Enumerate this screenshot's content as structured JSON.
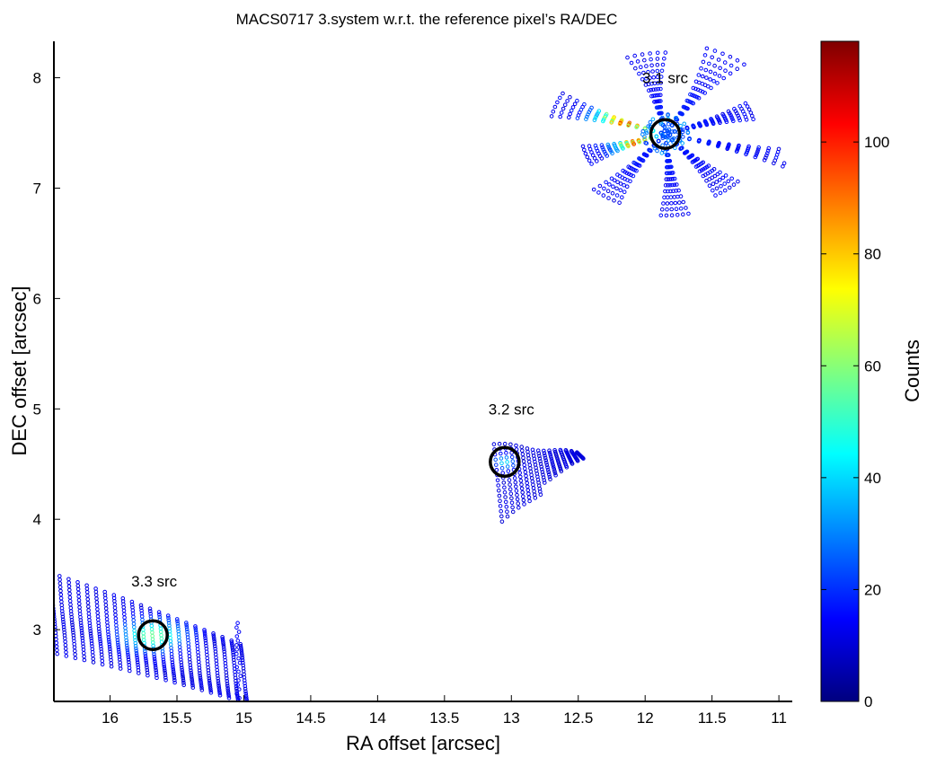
{
  "chart_data": {
    "type": "scatter",
    "title": "MACS0717  3.system w.r.t. the reference pixel’s RA/DEC",
    "xlabel": "RA offset [arcsec]",
    "ylabel": "DEC offset [arcsec]",
    "xlim": [
      16.42,
      10.9
    ],
    "ylim": [
      2.35,
      8.33
    ],
    "x_reversed": true,
    "x_ticks": [
      "16",
      "15.5",
      "15",
      "14.5",
      "14",
      "13.5",
      "13",
      "12.5",
      "12",
      "11.5",
      "11"
    ],
    "x_tick_values": [
      16,
      15.5,
      15,
      14.5,
      14,
      13.5,
      13,
      12.5,
      12,
      11.5,
      11
    ],
    "y_ticks": [
      "3",
      "4",
      "5",
      "6",
      "7",
      "8"
    ],
    "y_tick_values": [
      3,
      4,
      5,
      6,
      7,
      8
    ],
    "colorbar": {
      "label": "Counts",
      "range": [
        0,
        118
      ],
      "ticks": [
        "0",
        "20",
        "40",
        "60",
        "80",
        "100"
      ],
      "tick_values": [
        0,
        20,
        40,
        60,
        80,
        100
      ],
      "colormap": "jet"
    },
    "annotations": [
      {
        "label": "3.1 src",
        "x": 11.85,
        "y": 8.0
      },
      {
        "label": "3.2 src",
        "x": 13.0,
        "y": 5.0
      },
      {
        "label": "3.3 src",
        "x": 15.67,
        "y": 3.44
      }
    ],
    "circles": [
      {
        "x": 11.85,
        "y": 7.49
      },
      {
        "x": 13.05,
        "y": 4.52
      },
      {
        "x": 15.68,
        "y": 2.95
      }
    ],
    "regions": [
      {
        "name": "3.1",
        "center": [
          11.85,
          7.49
        ],
        "ra_range": [
          10.9,
          12.7
        ],
        "dec_range": [
          6.65,
          8.3
        ],
        "peak_counts": 118
      },
      {
        "name": "3.2",
        "center": [
          13.05,
          4.52
        ],
        "ra_range": [
          12.45,
          13.1
        ],
        "dec_range": [
          3.98,
          4.68
        ],
        "peak_counts": 40
      },
      {
        "name": "3.3",
        "center": [
          15.68,
          2.95
        ],
        "ra_range": [
          15.0,
          16.42
        ],
        "dec_range": [
          2.35,
          3.5
        ],
        "peak_counts": 55
      }
    ]
  }
}
